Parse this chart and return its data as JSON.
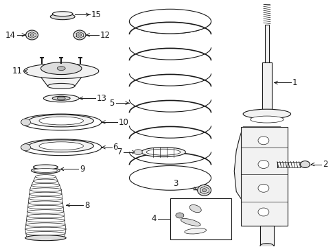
{
  "bg_color": "#ffffff",
  "line_color": "#1a1a1a",
  "figsize": [
    4.89,
    3.6
  ],
  "dpi": 100,
  "fs": 8.5
}
